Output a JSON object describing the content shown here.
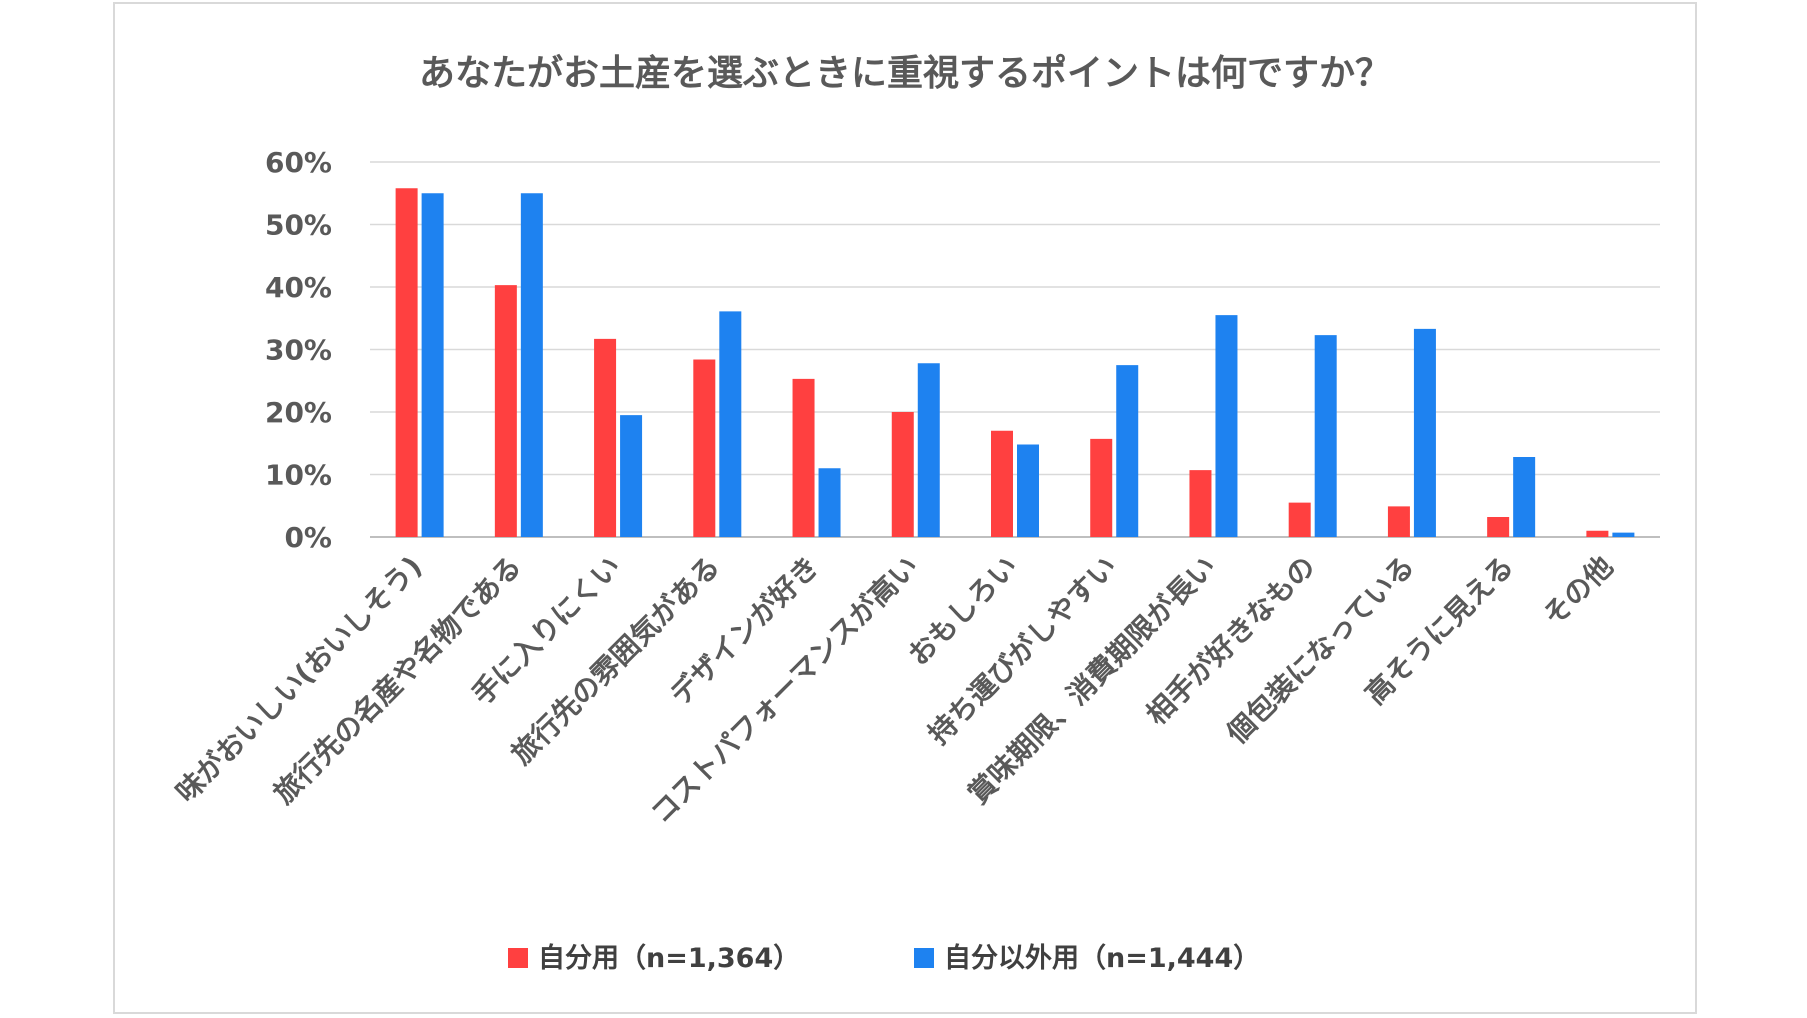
{
  "chart_data": {
    "type": "bar",
    "title": "あなたがお土産を選ぶときに重視するポイントは何ですか？",
    "categories": [
      "味がおいしい(おいしそう)",
      "旅行先の名産や名物である",
      "手に入りにくい",
      "旅行先の雰囲気がある",
      "デザインが好き",
      "コストパフォーマンスが高い",
      "おもしろい",
      "持ち運びがしやすい",
      "賞味期限、消費期限が長い",
      "相手が好きなもの",
      "個包装になっている",
      "高そうに見える",
      "その他"
    ],
    "series": [
      {
        "name": "自分用（n=1,364）",
        "color": "#ff4040",
        "values": [
          55.8,
          40.3,
          31.7,
          28.4,
          25.3,
          20.0,
          17.0,
          15.7,
          10.7,
          5.5,
          4.9,
          3.2,
          1.0
        ]
      },
      {
        "name": "自分以外用（n=1,444）",
        "color": "#1e82f0",
        "values": [
          55.0,
          55.0,
          19.5,
          36.1,
          11.0,
          27.8,
          14.8,
          27.5,
          35.5,
          32.3,
          33.3,
          12.8,
          0.7
        ]
      }
    ],
    "y_ticks": [
      "0%",
      "10%",
      "20%",
      "30%",
      "40%",
      "50%",
      "60%"
    ],
    "ylim": [
      0,
      60
    ],
    "grid": true,
    "legend_position": "bottom"
  }
}
